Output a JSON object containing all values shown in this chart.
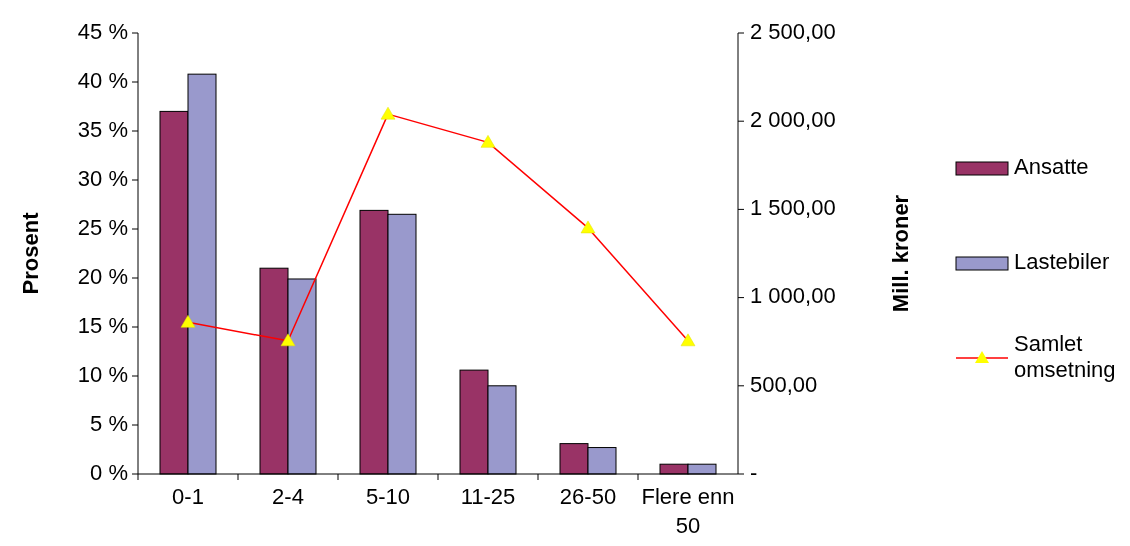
{
  "chart_data": {
    "type": "bar",
    "categories": [
      "0-1",
      "2-4",
      "5-10",
      "11-25",
      "26-50",
      "Flere enn 50"
    ],
    "ylabel": "Prosent",
    "y2label": "Mill. kroner",
    "ylim": [
      0,
      45
    ],
    "yticks": [
      {
        "value": 0,
        "label": "0 %"
      },
      {
        "value": 5,
        "label": "5 %"
      },
      {
        "value": 10,
        "label": "10 %"
      },
      {
        "value": 15,
        "label": "15 %"
      },
      {
        "value": 20,
        "label": "20 %"
      },
      {
        "value": 25,
        "label": "25 %"
      },
      {
        "value": 30,
        "label": "30 %"
      },
      {
        "value": 35,
        "label": "35 %"
      },
      {
        "value": 40,
        "label": "40 %"
      },
      {
        "value": 45,
        "label": "45 %"
      }
    ],
    "y2lim": [
      0,
      2500
    ],
    "y2ticks": [
      {
        "value": 0,
        "label": "-"
      },
      {
        "value": 500,
        "label": "500,00"
      },
      {
        "value": 1000,
        "label": "1 000,00"
      },
      {
        "value": 1500,
        "label": "1 500,00"
      },
      {
        "value": 2000,
        "label": "2 000,00"
      },
      {
        "value": 2500,
        "label": "2 500,00"
      }
    ],
    "legend": "right",
    "grid": false,
    "series": [
      {
        "name": "Ansatte",
        "color": "#993366",
        "values": [
          37,
          21,
          26.9,
          10.6,
          3.1,
          1.0
        ]
      },
      {
        "name": "Lastebiler",
        "color": "#9999cc",
        "values": [
          40.8,
          19.9,
          26.5,
          9.0,
          2.7,
          1.0
        ]
      },
      {
        "name": "Samlet omsetning",
        "type": "line",
        "axis": "y2",
        "color": "#ff0000",
        "marker": "triangle",
        "values": [
          860,
          755,
          2040,
          1880,
          1395,
          755
        ]
      }
    ]
  }
}
